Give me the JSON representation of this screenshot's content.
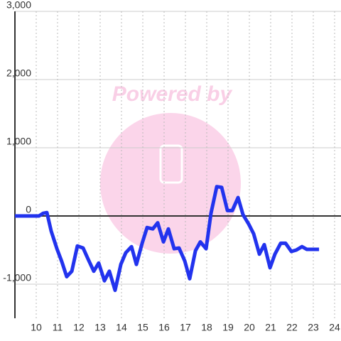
{
  "chart_data": {
    "type": "line",
    "annotation": "Powered by",
    "x": [
      9,
      10.13,
      10.33,
      10.5,
      10.7,
      10.97,
      11.2,
      11.43,
      11.67,
      11.93,
      12.2,
      12.43,
      12.7,
      12.93,
      13.2,
      13.43,
      13.7,
      13.97,
      14.2,
      14.47,
      14.7,
      14.97,
      15.2,
      15.47,
      15.7,
      15.97,
      16.2,
      16.47,
      16.7,
      16.97,
      17.2,
      17.47,
      17.7,
      17.97,
      18.2,
      18.47,
      18.7,
      18.97,
      19.2,
      19.47,
      19.7,
      19.97,
      20.2,
      20.47,
      20.7,
      20.97,
      21.2,
      21.47,
      21.7,
      21.97,
      22.2,
      22.47,
      22.7,
      22.97,
      23.27
    ],
    "values": [
      0,
      0,
      40,
      50,
      -220,
      -480,
      -670,
      -890,
      -810,
      -440,
      -470,
      -630,
      -810,
      -690,
      -950,
      -810,
      -1090,
      -710,
      -540,
      -450,
      -710,
      -400,
      -170,
      -190,
      -100,
      -380,
      -190,
      -480,
      -470,
      -660,
      -920,
      -510,
      -380,
      -480,
      40,
      430,
      420,
      80,
      80,
      270,
      20,
      -120,
      -260,
      -560,
      -420,
      -760,
      -560,
      -400,
      -400,
      -520,
      -500,
      -450,
      -490,
      -490,
      -490
    ],
    "color": "#2233ee",
    "xlim": [
      9,
      24.3
    ],
    "ylim": [
      -1500,
      3000
    ],
    "xticks": [
      10,
      11,
      12,
      13,
      14,
      15,
      16,
      17,
      18,
      19,
      20,
      21,
      22,
      23,
      24
    ],
    "yticks": [
      {
        "value": -1000,
        "label": "-1,000"
      },
      0,
      {
        "value": 1000,
        "label": "1,000"
      },
      {
        "value": 2000,
        "label": "2,000"
      },
      {
        "value": 3000,
        "label": "3,000"
      }
    ],
    "grid": true
  }
}
